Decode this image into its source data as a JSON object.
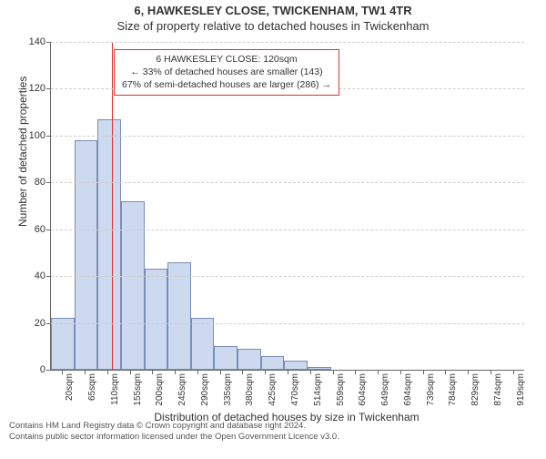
{
  "header": {
    "address": "6, HAWKESLEY CLOSE, TWICKENHAM, TW1 4TR",
    "subtitle": "Size of property relative to detached houses in Twickenham"
  },
  "chart": {
    "type": "histogram",
    "ylabel": "Number of detached properties",
    "xlabel": "Distribution of detached houses by size in Twickenham",
    "ylim": [
      0,
      140
    ],
    "ytick_step": 20,
    "bar_fill": "#cdd9ef",
    "bar_border": "#7a8db8",
    "grid_color": "#cccccc",
    "axis_color": "#666666",
    "marker_color": "#e03131",
    "marker_x": "120sqm",
    "categories": [
      "20sqm",
      "65sqm",
      "110sqm",
      "155sqm",
      "200sqm",
      "245sqm",
      "290sqm",
      "335sqm",
      "380sqm",
      "425sqm",
      "470sqm",
      "514sqm",
      "559sqm",
      "604sqm",
      "649sqm",
      "694sqm",
      "739sqm",
      "784sqm",
      "829sqm",
      "874sqm",
      "919sqm"
    ],
    "values": [
      22,
      98,
      107,
      72,
      43,
      46,
      22,
      10,
      9,
      6,
      4,
      1,
      0,
      0,
      0,
      0,
      0,
      0,
      0,
      0,
      0
    ]
  },
  "info_box": {
    "line1": "6 HAWKESLEY CLOSE: 120sqm",
    "line2": "← 33% of detached houses are smaller (143)",
    "line3": "67% of semi-detached houses are larger (286) →"
  },
  "footer": {
    "line1": "Contains HM Land Registry data © Crown copyright and database right 2024.",
    "line2": "Contains public sector information licensed under the Open Government Licence v3.0."
  }
}
